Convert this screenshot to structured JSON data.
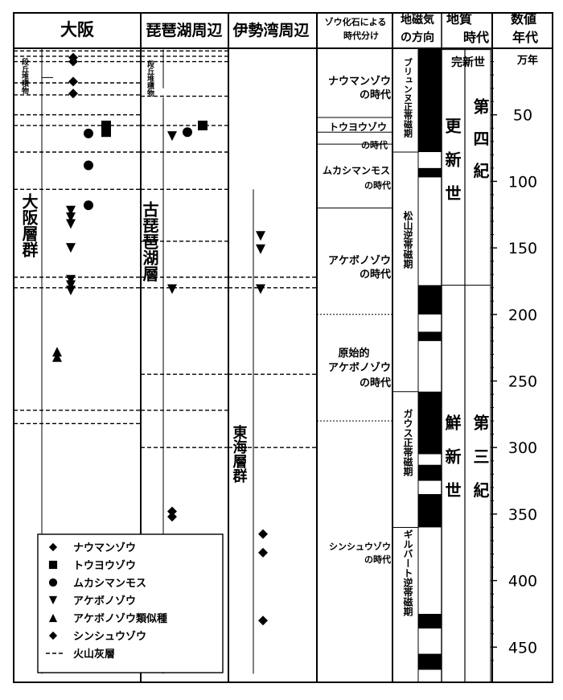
{
  "headers": {
    "osaka": "大阪",
    "biwa": "琵琶湖周辺",
    "ise": "伊勢湾周辺",
    "zou_line1": "ゾウ化石による",
    "zou_line2": "時代分け",
    "mag_line1": "地磁気",
    "mag_line2": "の方向",
    "geo_line1": "地質",
    "geo_line2": "時代",
    "num_line1": "数値",
    "num_line2": "年代"
  },
  "formations": {
    "osaka_kyuryo": "段丘堆積物",
    "osaka_group": "大阪層群",
    "biwa_kyuryo": "段丘堆積物",
    "kobiwako": "古琵琶湖層",
    "tokai": "東海層群"
  },
  "eras": [
    {
      "label": "ナウマンゾウの時代",
      "from": 0,
      "to": 63
    },
    {
      "label": "トウヨウゾウの時代",
      "from": 63,
      "to": 72
    },
    {
      "label": "ムカシマンモスの時代",
      "from": 72,
      "to": 120
    },
    {
      "label": "アケボノゾウの時代",
      "from": 120,
      "to": 200
    },
    {
      "label": "原始的アケボノゾウの時代",
      "from": 200,
      "to": 280
    },
    {
      "label": "シンシュウゾウの時代",
      "from": 280,
      "to": 470
    }
  ],
  "era_lines": [
    {
      "ma": 63,
      "style": "solid"
    },
    {
      "ma": 72,
      "style": "solid"
    },
    {
      "ma": 120,
      "style": "solid"
    },
    {
      "ma": 200,
      "style": "dashed"
    },
    {
      "ma": 280,
      "style": "dashed"
    }
  ],
  "mag_chrons": [
    {
      "label": "ブリュンヌ正帯磁期",
      "from": 0,
      "to": 78
    },
    {
      "label": "松山逆帯磁期",
      "from": 78,
      "to": 258
    },
    {
      "label": "ガウス正帯磁期",
      "from": 258,
      "to": 360
    },
    {
      "label": "ギルバート逆帯磁期",
      "from": 360,
      "to": 470
    }
  ],
  "mag_black_intervals": [
    [
      0,
      78
    ],
    [
      90,
      97
    ],
    [
      178,
      200
    ],
    [
      213,
      220
    ],
    [
      258,
      305
    ],
    [
      313,
      325
    ],
    [
      335,
      360
    ],
    [
      425,
      436
    ],
    [
      455,
      467
    ]
  ],
  "geologic": {
    "holocene": "完新世",
    "pleistocene": "更新世",
    "quaternary": "第四紀",
    "pliocene": "鮮新世",
    "tertiary": "第三紀",
    "boundary_ma": 178
  },
  "age_axis": {
    "unit": "万年",
    "ticks": [
      50,
      100,
      150,
      200,
      250,
      300,
      350,
      400,
      450
    ],
    "range": [
      0,
      470
    ]
  },
  "ash_lines": {
    "osaka": [
      2,
      6,
      10,
      26,
      35,
      50,
      58,
      78,
      106,
      172,
      180,
      272,
      282
    ],
    "biwa": [
      2,
      6,
      10,
      36,
      58,
      78,
      106,
      145,
      172,
      180,
      245,
      272,
      300
    ],
    "ise": [
      172,
      180,
      245,
      300
    ]
  },
  "fossils": [
    {
      "loc": "osaka",
      "x": 91,
      "ma": 7,
      "type": "naumann"
    },
    {
      "loc": "osaka",
      "x": 91,
      "ma": 10,
      "type": "naumann"
    },
    {
      "loc": "osaka",
      "x": 91,
      "ma": 25,
      "type": "naumann"
    },
    {
      "loc": "osaka",
      "x": 91,
      "ma": 34,
      "type": "naumann"
    },
    {
      "loc": "osaka",
      "x": 132,
      "ma": 58,
      "type": "touyou"
    },
    {
      "loc": "osaka",
      "x": 132,
      "ma": 63,
      "type": "touyou"
    },
    {
      "loc": "osaka",
      "x": 110,
      "ma": 64,
      "type": "mukashi"
    },
    {
      "loc": "osaka",
      "x": 110,
      "ma": 88,
      "type": "mukashi"
    },
    {
      "loc": "osaka",
      "x": 110,
      "ma": 118,
      "type": "mukashi"
    },
    {
      "loc": "osaka",
      "x": 88,
      "ma": 122,
      "type": "akebono"
    },
    {
      "loc": "osaka",
      "x": 88,
      "ma": 127,
      "type": "akebono"
    },
    {
      "loc": "osaka",
      "x": 88,
      "ma": 132,
      "type": "akebono"
    },
    {
      "loc": "osaka",
      "x": 88,
      "ma": 150,
      "type": "akebono"
    },
    {
      "loc": "osaka",
      "x": 88,
      "ma": 174,
      "type": "akebono"
    },
    {
      "loc": "osaka",
      "x": 88,
      "ma": 178,
      "type": "akebono"
    },
    {
      "loc": "osaka",
      "x": 88,
      "ma": 182,
      "type": "akebono"
    },
    {
      "loc": "osaka",
      "x": 71,
      "ma": 228,
      "type": "akebono_like"
    },
    {
      "loc": "osaka",
      "x": 71,
      "ma": 232,
      "type": "akebono_like"
    },
    {
      "loc": "biwa",
      "x": 252,
      "ma": 58,
      "type": "touyou"
    },
    {
      "loc": "biwa",
      "x": 233,
      "ma": 63,
      "type": "mukashi"
    },
    {
      "loc": "biwa",
      "x": 214,
      "ma": 66,
      "type": "akebono"
    },
    {
      "loc": "biwa",
      "x": 214,
      "ma": 181,
      "type": "akebono"
    },
    {
      "loc": "biwa",
      "x": 214,
      "ma": 348,
      "type": "shinshu"
    },
    {
      "loc": "biwa",
      "x": 214,
      "ma": 352,
      "type": "shinshu"
    },
    {
      "loc": "ise",
      "x": 324,
      "ma": 141,
      "type": "akebono"
    },
    {
      "loc": "ise",
      "x": 324,
      "ma": 151,
      "type": "akebono"
    },
    {
      "loc": "ise",
      "x": 324,
      "ma": 181,
      "type": "akebono"
    },
    {
      "loc": "ise",
      "x": 327,
      "ma": 365,
      "type": "shinshu"
    },
    {
      "loc": "ise",
      "x": 327,
      "ma": 379,
      "type": "shinshu"
    },
    {
      "loc": "ise",
      "x": 327,
      "ma": 430,
      "type": "shinshu"
    }
  ],
  "legend": [
    {
      "type": "naumann",
      "label": "ナウマンゾウ"
    },
    {
      "type": "touyou",
      "label": "トウヨウゾウ"
    },
    {
      "type": "mukashi",
      "label": "ムカシマンモス"
    },
    {
      "type": "akebono",
      "label": "アケボノゾウ"
    },
    {
      "type": "akebono_like",
      "label": "アケボノゾウ類似種"
    },
    {
      "type": "shinshu",
      "label": "シンシュウゾウ"
    },
    {
      "type": "ash",
      "label": "火山灰層"
    }
  ]
}
